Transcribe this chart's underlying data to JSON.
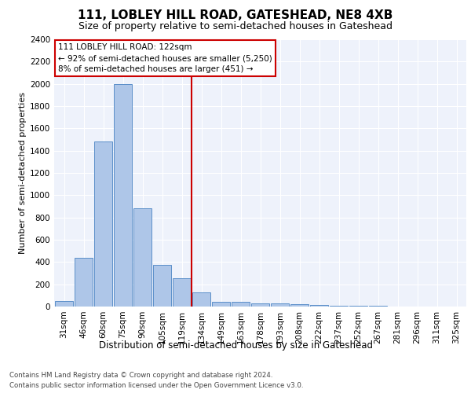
{
  "title_line1": "111, LOBLEY HILL ROAD, GATESHEAD, NE8 4XB",
  "title_line2": "Size of property relative to semi-detached houses in Gateshead",
  "xlabel": "Distribution of semi-detached houses by size in Gateshead",
  "ylabel": "Number of semi-detached properties",
  "bar_color": "#aec6e8",
  "bar_edge_color": "#5b8fc9",
  "categories": [
    "31sqm",
    "46sqm",
    "60sqm",
    "75sqm",
    "90sqm",
    "105sqm",
    "119sqm",
    "134sqm",
    "149sqm",
    "163sqm",
    "178sqm",
    "193sqm",
    "208sqm",
    "222sqm",
    "237sqm",
    "252sqm",
    "267sqm",
    "281sqm",
    "296sqm",
    "311sqm",
    "325sqm"
  ],
  "values": [
    50,
    440,
    1480,
    2000,
    880,
    375,
    255,
    130,
    45,
    40,
    30,
    25,
    20,
    15,
    10,
    5,
    5,
    0,
    0,
    0,
    0
  ],
  "vline_index": 6,
  "annotation_title": "111 LOBLEY HILL ROAD: 122sqm",
  "annotation_line1": "← 92% of semi-detached houses are smaller (5,250)",
  "annotation_line2": "8% of semi-detached houses are larger (451) →",
  "ylim": [
    0,
    2400
  ],
  "yticks": [
    0,
    200,
    400,
    600,
    800,
    1000,
    1200,
    1400,
    1600,
    1800,
    2000,
    2200,
    2400
  ],
  "footer_line1": "Contains HM Land Registry data © Crown copyright and database right 2024.",
  "footer_line2": "Contains public sector information licensed under the Open Government Licence v3.0.",
  "background_color": "#eef2fb",
  "grid_color": "#ffffff",
  "annotation_box_color": "#ffffff",
  "annotation_box_edge": "#cc0000",
  "vline_color": "#cc0000",
  "title_fontsize": 11,
  "subtitle_fontsize": 9,
  "ylabel_fontsize": 8,
  "xlabel_fontsize": 8.5,
  "tick_fontsize": 7.5,
  "annotation_fontsize": 7.5,
  "footer_fontsize": 6.2
}
